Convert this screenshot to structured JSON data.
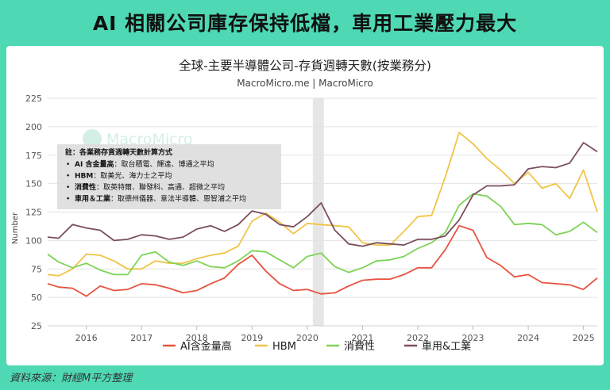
{
  "headline": "AI 相關公司庫存保持低檔，車用工業壓力最大",
  "source_note": "資料來源：財經M平方整理",
  "watermark": "MacroMicro",
  "chart_data": {
    "type": "line",
    "title": "全球-主要半導體公司-存貨週轉天數(按業務分)",
    "subtitle": "MacroMicro.me | MacroMicro",
    "ylabel": "Number",
    "xlabel": "",
    "ylim": [
      25,
      225
    ],
    "yticks": [
      25,
      50,
      75,
      100,
      125,
      150,
      175,
      200,
      225
    ],
    "xlim": [
      2015.3,
      2025.25
    ],
    "xticks": [
      2016,
      2017,
      2018,
      2019,
      2020,
      2021,
      2022,
      2023,
      2024,
      2025
    ],
    "xtick_labels": [
      "2016",
      "2017",
      "2018",
      "2019",
      "2020",
      "2021",
      "2022",
      "2023",
      "2024",
      "2025"
    ],
    "grid": true,
    "legend_position": "bottom",
    "shaded_band": [
      2020.1,
      2020.3
    ],
    "note": {
      "title": "註：各業務存貨週轉天數計算方式",
      "lines": [
        {
          "bold": "AI 含金量高",
          "text": "：取台積電、輝達、博通之平均"
        },
        {
          "bold": "HBM",
          "text": "：取美光、海力士之平均"
        },
        {
          "bold": "消費性",
          "text": "：取英特爾、聯發科、高通、超微之平均"
        },
        {
          "bold": "車用＆工業",
          "text": "：取德州儀器、意法半導體、恩智浦之平均"
        }
      ]
    },
    "x": [
      2015.3,
      2015.5,
      2015.75,
      2016.0,
      2016.25,
      2016.5,
      2016.75,
      2017.0,
      2017.25,
      2017.5,
      2017.75,
      2018.0,
      2018.25,
      2018.5,
      2018.75,
      2019.0,
      2019.25,
      2019.5,
      2019.75,
      2020.0,
      2020.25,
      2020.5,
      2020.75,
      2021.0,
      2021.25,
      2021.5,
      2021.75,
      2022.0,
      2022.25,
      2022.5,
      2022.75,
      2023.0,
      2023.25,
      2023.5,
      2023.75,
      2024.0,
      2024.25,
      2024.5,
      2024.75,
      2025.0,
      2025.25
    ],
    "series": [
      {
        "name": "AI含金量高",
        "color": "#e8523f",
        "values": [
          62,
          59,
          58,
          51,
          60,
          56,
          57,
          62,
          61,
          58,
          54,
          56,
          62,
          67,
          79,
          87,
          73,
          62,
          56,
          57,
          53,
          54,
          60,
          65,
          66,
          66,
          70,
          76,
          76,
          92,
          113,
          109,
          85,
          78,
          68,
          70,
          63,
          62,
          61,
          57,
          67
        ]
      },
      {
        "name": "HBM",
        "color": "#f0c446",
        "values": [
          70,
          69,
          75,
          88,
          87,
          82,
          75,
          75,
          82,
          80,
          80,
          84,
          87,
          89,
          95,
          117,
          124,
          116,
          106,
          115,
          114,
          113,
          112,
          98,
          96,
          96,
          108,
          121,
          122,
          156,
          195,
          185,
          172,
          162,
          150,
          160,
          146,
          150,
          137,
          162,
          125
        ]
      },
      {
        "name": "消費性",
        "color": "#7ed357",
        "values": [
          88,
          81,
          76,
          80,
          74,
          70,
          70,
          87,
          90,
          81,
          78,
          82,
          77,
          76,
          82,
          91,
          90,
          83,
          76,
          86,
          89,
          77,
          72,
          76,
          82,
          83,
          86,
          93,
          98,
          107,
          131,
          141,
          139,
          130,
          114,
          115,
          114,
          105,
          108,
          116,
          107
        ]
      },
      {
        "name": "車用&工業",
        "color": "#7a4e5e",
        "values": [
          103,
          102,
          114,
          111,
          109,
          100,
          101,
          105,
          104,
          101,
          103,
          110,
          113,
          108,
          114,
          126,
          123,
          114,
          112,
          121,
          133,
          109,
          97,
          95,
          98,
          97,
          96,
          101,
          101,
          104,
          118,
          140,
          148,
          148,
          149,
          163,
          165,
          164,
          168,
          186,
          178
        ]
      }
    ]
  }
}
